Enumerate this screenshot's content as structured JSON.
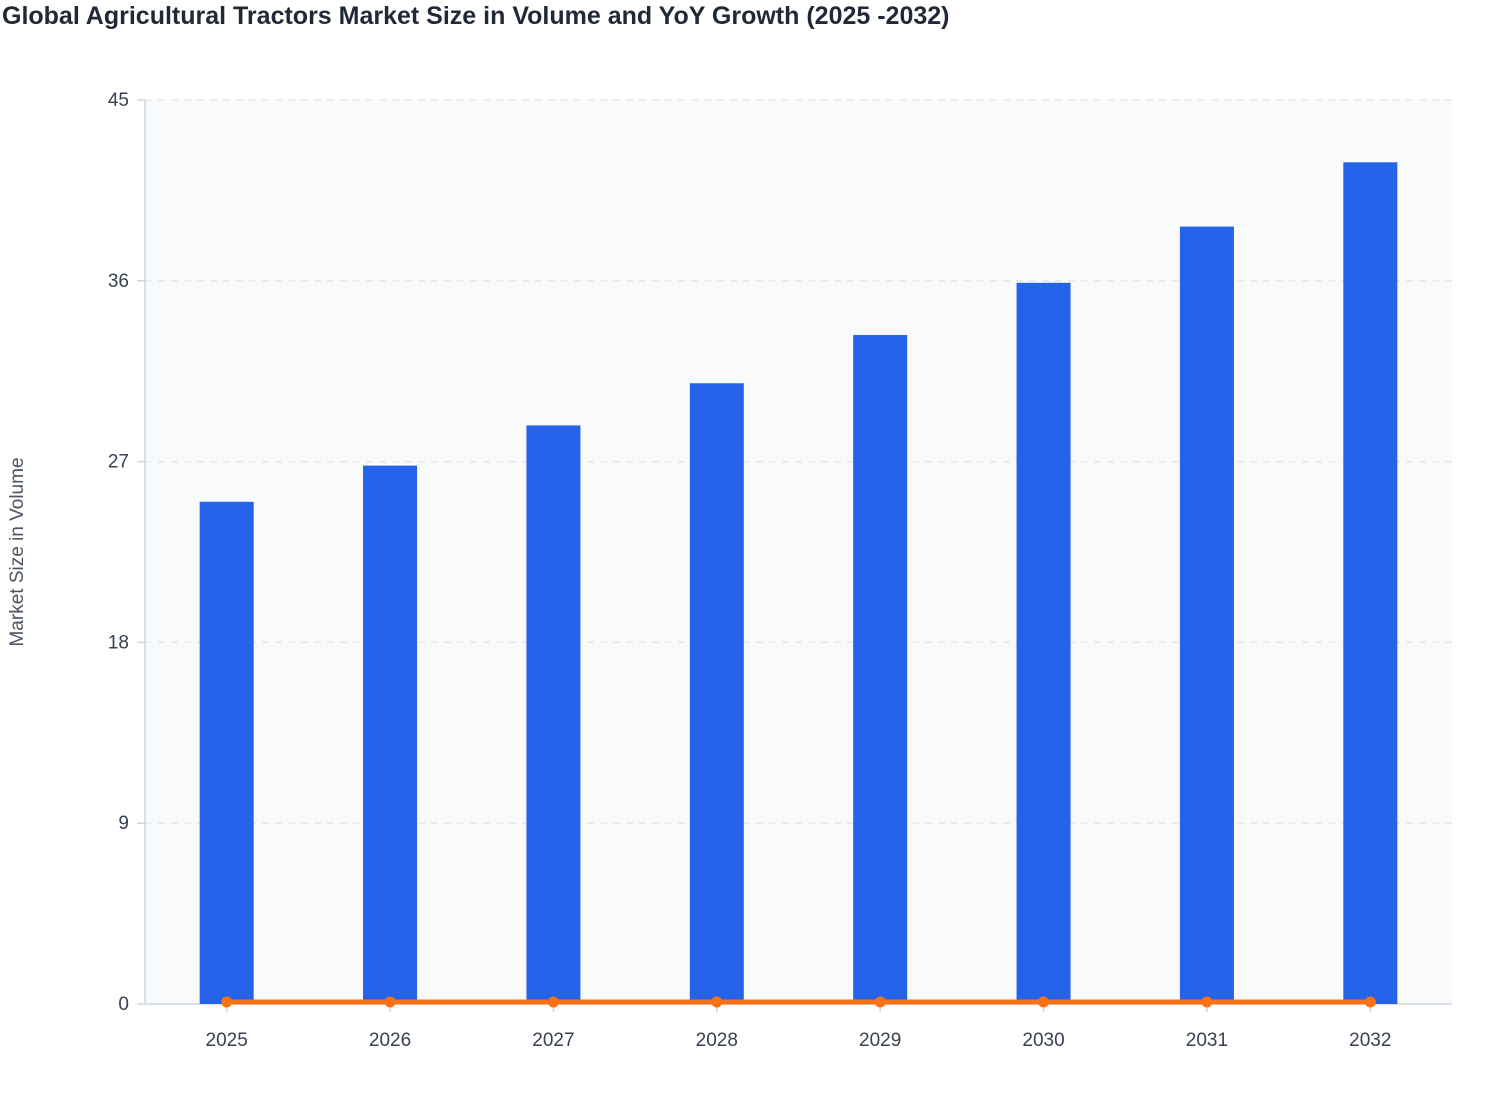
{
  "chart_data": {
    "type": "bar",
    "title": "Global Agricultural Tractors Market Size in Volume and YoY Growth (2025 -2032)",
    "ylabel": "Market Size in Volume",
    "xlabel": "",
    "categories": [
      "2025",
      "2026",
      "2027",
      "2028",
      "2029",
      "2030",
      "2031",
      "2032"
    ],
    "series": [
      {
        "type": "bar",
        "values": [
          25.0,
          26.8,
          28.8,
          30.9,
          33.3,
          35.9,
          38.7,
          41.9
        ],
        "color": "#2563eb"
      },
      {
        "type": "line",
        "values": [
          0.1,
          0.1,
          0.1,
          0.1,
          0.1,
          0.1,
          0.1,
          0.1
        ],
        "color": "#f97316"
      }
    ],
    "ylim": [
      0,
      45
    ],
    "yticks": [
      0,
      9,
      18,
      27,
      36,
      45
    ],
    "grid": true,
    "colors": {
      "plot_background": "#f8fafc",
      "grid": "#e5e7eb",
      "axis": "#cbd5e1"
    }
  }
}
